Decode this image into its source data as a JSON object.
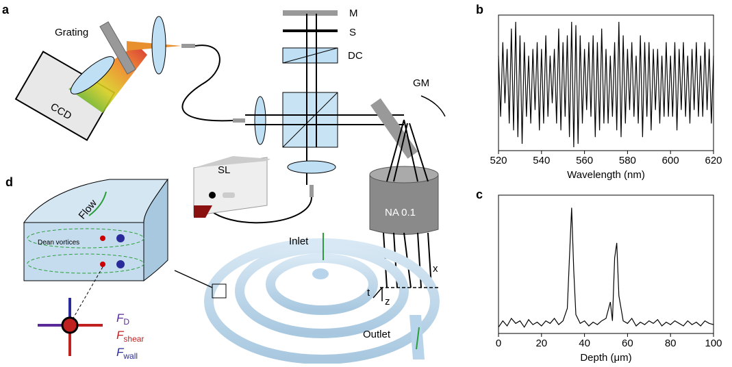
{
  "diagram": {
    "panel_a": "a",
    "panel_b": "b",
    "panel_c": "c",
    "panel_d": "d",
    "grating": "Grating",
    "mirror": "M",
    "slit": "S",
    "compensator": "DC",
    "galvo": "GM",
    "camera": "CCD",
    "source": "SL",
    "objective": "NA 0.1",
    "inlet": "Inlet",
    "outlet": "Outlet",
    "flow": "Flow",
    "vortices": "Dean vortices",
    "axis_x": "x",
    "axis_t": "t",
    "axis_z": "z",
    "forces": [
      {
        "symbol": "F",
        "sub": "D"
      },
      {
        "symbol": "F",
        "sub": "shear"
      },
      {
        "symbol": "F",
        "sub": "wall"
      }
    ]
  },
  "chart_data": [
    {
      "type": "line",
      "xlabel": "Wavelength (nm)",
      "color": "#000000",
      "x": [
        520,
        521,
        522,
        523,
        524,
        525,
        526,
        527,
        528,
        529,
        530,
        531,
        532,
        533,
        534,
        535,
        536,
        537,
        538,
        539,
        540,
        541,
        542,
        543,
        544,
        545,
        546,
        547,
        548,
        549,
        550,
        551,
        552,
        553,
        554,
        555,
        556,
        557,
        558,
        559,
        560,
        561,
        562,
        563,
        564,
        565,
        566,
        567,
        568,
        569,
        570,
        571,
        572,
        573,
        574,
        575,
        576,
        577,
        578,
        579,
        580,
        581,
        582,
        583,
        584,
        585,
        586,
        587,
        588,
        589,
        590,
        591,
        592,
        593,
        594,
        595,
        596,
        597,
        598,
        599,
        600,
        601,
        602,
        603,
        604,
        605,
        606,
        607,
        608,
        609,
        610,
        611,
        612,
        613,
        614,
        615,
        616,
        617,
        618,
        619,
        620
      ],
      "values": [
        0.4,
        -0.5,
        0.6,
        -0.3,
        0.5,
        -0.6,
        0.8,
        -0.7,
        0.9,
        -0.8,
        0.7,
        -0.9,
        0.6,
        -0.5,
        0.4,
        -0.6,
        0.5,
        -0.4,
        0.6,
        -0.7,
        0.5,
        -0.6,
        0.7,
        -0.5,
        0.4,
        -0.3,
        0.5,
        -0.6,
        0.8,
        -0.7,
        0.6,
        -0.5,
        0.7,
        -0.8,
        0.9,
        -0.95,
        0.85,
        -0.9,
        0.7,
        -0.6,
        0.5,
        -0.4,
        0.6,
        -0.5,
        0.7,
        -0.8,
        0.6,
        -0.7,
        0.8,
        -0.6,
        0.5,
        -0.6,
        0.4,
        -0.5,
        0.6,
        -0.7,
        0.9,
        -0.8,
        0.7,
        -0.6,
        0.5,
        -0.4,
        0.6,
        -0.5,
        0.4,
        -0.6,
        0.7,
        -0.8,
        0.6,
        -0.5,
        0.6,
        -0.7,
        0.5,
        -0.4,
        0.5,
        -0.6,
        0.4,
        -0.5,
        0.6,
        -0.5,
        0.4,
        -0.5,
        0.6,
        -0.7,
        0.5,
        -0.4,
        0.6,
        -0.5,
        0.4,
        -0.6,
        0.5,
        -0.4,
        0.6,
        -0.5,
        0.4,
        -0.5,
        0.6,
        -0.4,
        0.5,
        -0.6,
        0.4
      ],
      "xlim": [
        520,
        620
      ],
      "xticks": [
        520,
        540,
        560,
        580,
        600,
        620
      ],
      "ylim": [
        -1,
        1
      ]
    },
    {
      "type": "line",
      "xlabel": "Depth (μm)",
      "color": "#000000",
      "x": [
        0,
        2,
        4,
        6,
        8,
        10,
        12,
        14,
        16,
        18,
        20,
        22,
        24,
        26,
        28,
        30,
        32,
        33,
        34,
        35,
        36,
        38,
        40,
        42,
        44,
        46,
        48,
        50,
        52,
        53,
        54,
        55,
        56,
        58,
        60,
        62,
        64,
        66,
        68,
        70,
        72,
        74,
        76,
        78,
        80,
        82,
        84,
        86,
        88,
        90,
        92,
        94,
        96,
        98,
        100
      ],
      "values": [
        0.05,
        0.1,
        0.06,
        0.12,
        0.08,
        0.1,
        0.05,
        0.11,
        0.07,
        0.09,
        0.06,
        0.1,
        0.08,
        0.12,
        0.07,
        0.1,
        0.2,
        0.6,
        1.0,
        0.5,
        0.15,
        0.08,
        0.1,
        0.06,
        0.09,
        0.07,
        0.1,
        0.12,
        0.25,
        0.1,
        0.6,
        0.72,
        0.3,
        0.1,
        0.08,
        0.12,
        0.06,
        0.09,
        0.07,
        0.1,
        0.08,
        0.11,
        0.06,
        0.09,
        0.07,
        0.1,
        0.08,
        0.06,
        0.1,
        0.07,
        0.09,
        0.06,
        0.1,
        0.08,
        0.07
      ],
      "xlim": [
        0,
        100
      ],
      "xticks": [
        0,
        20,
        40,
        60,
        80,
        100
      ],
      "ylim": [
        0,
        1.1
      ]
    }
  ]
}
